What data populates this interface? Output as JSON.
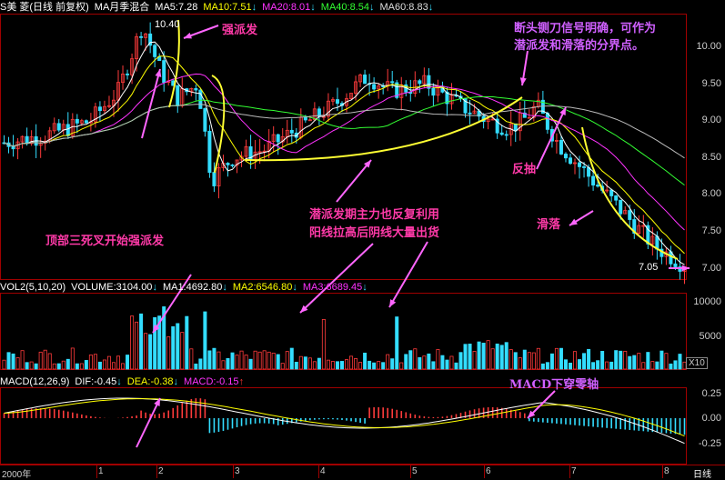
{
  "header_main": {
    "stock": "S美 菱(日线 前复权)",
    "ma_mode": "MA月季混合",
    "ma5": "MA5:7.28",
    "ma10": "MA10:7.51",
    "ma20": "MA20:8.01",
    "ma40": "MA40:8.54",
    "ma60": "MA60:8.83",
    "arrow": "↓"
  },
  "header_volume": {
    "vol": "VOL2(5,10,20)",
    "volume": "VOLUME:3104.00",
    "ma1": "MA1:4692.80",
    "ma2": "MA2:6546.80",
    "ma3": "MA3:6689.45",
    "arrow": "↓"
  },
  "header_macd": {
    "macd": "MACD(12,26,9)",
    "dif": "DIF:-0.45",
    "dea": "DEA:-0.38",
    "macdv": "MACD:-0.15",
    "up": "↑",
    "arrow": "↓"
  },
  "price_axis": [
    "10.00",
    "9.50",
    "9.00",
    "8.50",
    "8.00",
    "7.50",
    "7.00"
  ],
  "volume_axis": [
    "10000",
    "5000"
  ],
  "volume_scale": "X10",
  "macd_axis": [
    "0.25",
    "0.00",
    "-0.25"
  ],
  "x_axis": {
    "year": "2000年",
    "months": [
      "1",
      "2",
      "3",
      "4",
      "5",
      "6",
      "7",
      "8"
    ],
    "period": "日线"
  },
  "markers": {
    "high": "10.40",
    "low": "7.05"
  },
  "annotations": {
    "strong_rise": "强派发",
    "guillotine": "断头铡刀信号明确，可作为",
    "guillotine2": "潜派发和滑落的分界点。",
    "rebound": "反抽",
    "slide": "滑落",
    "top_death": "顶部三死叉开始强派发",
    "hidden1": "潜派发期主力也反复利用",
    "hidden2": "阳线拉高后阴线大量出货",
    "macd_cross": "MACD下穿零轴"
  },
  "colors": {
    "up": "#ff3b3b",
    "down": "#33ddff",
    "ma5": "#ffffff",
    "ma10": "#ffff00",
    "ma20": "#ff33ff",
    "ma40": "#33ff33",
    "ma60": "#bbbbbb",
    "arrow": "#ff66ff",
    "curve": "#ffff33"
  }
}
